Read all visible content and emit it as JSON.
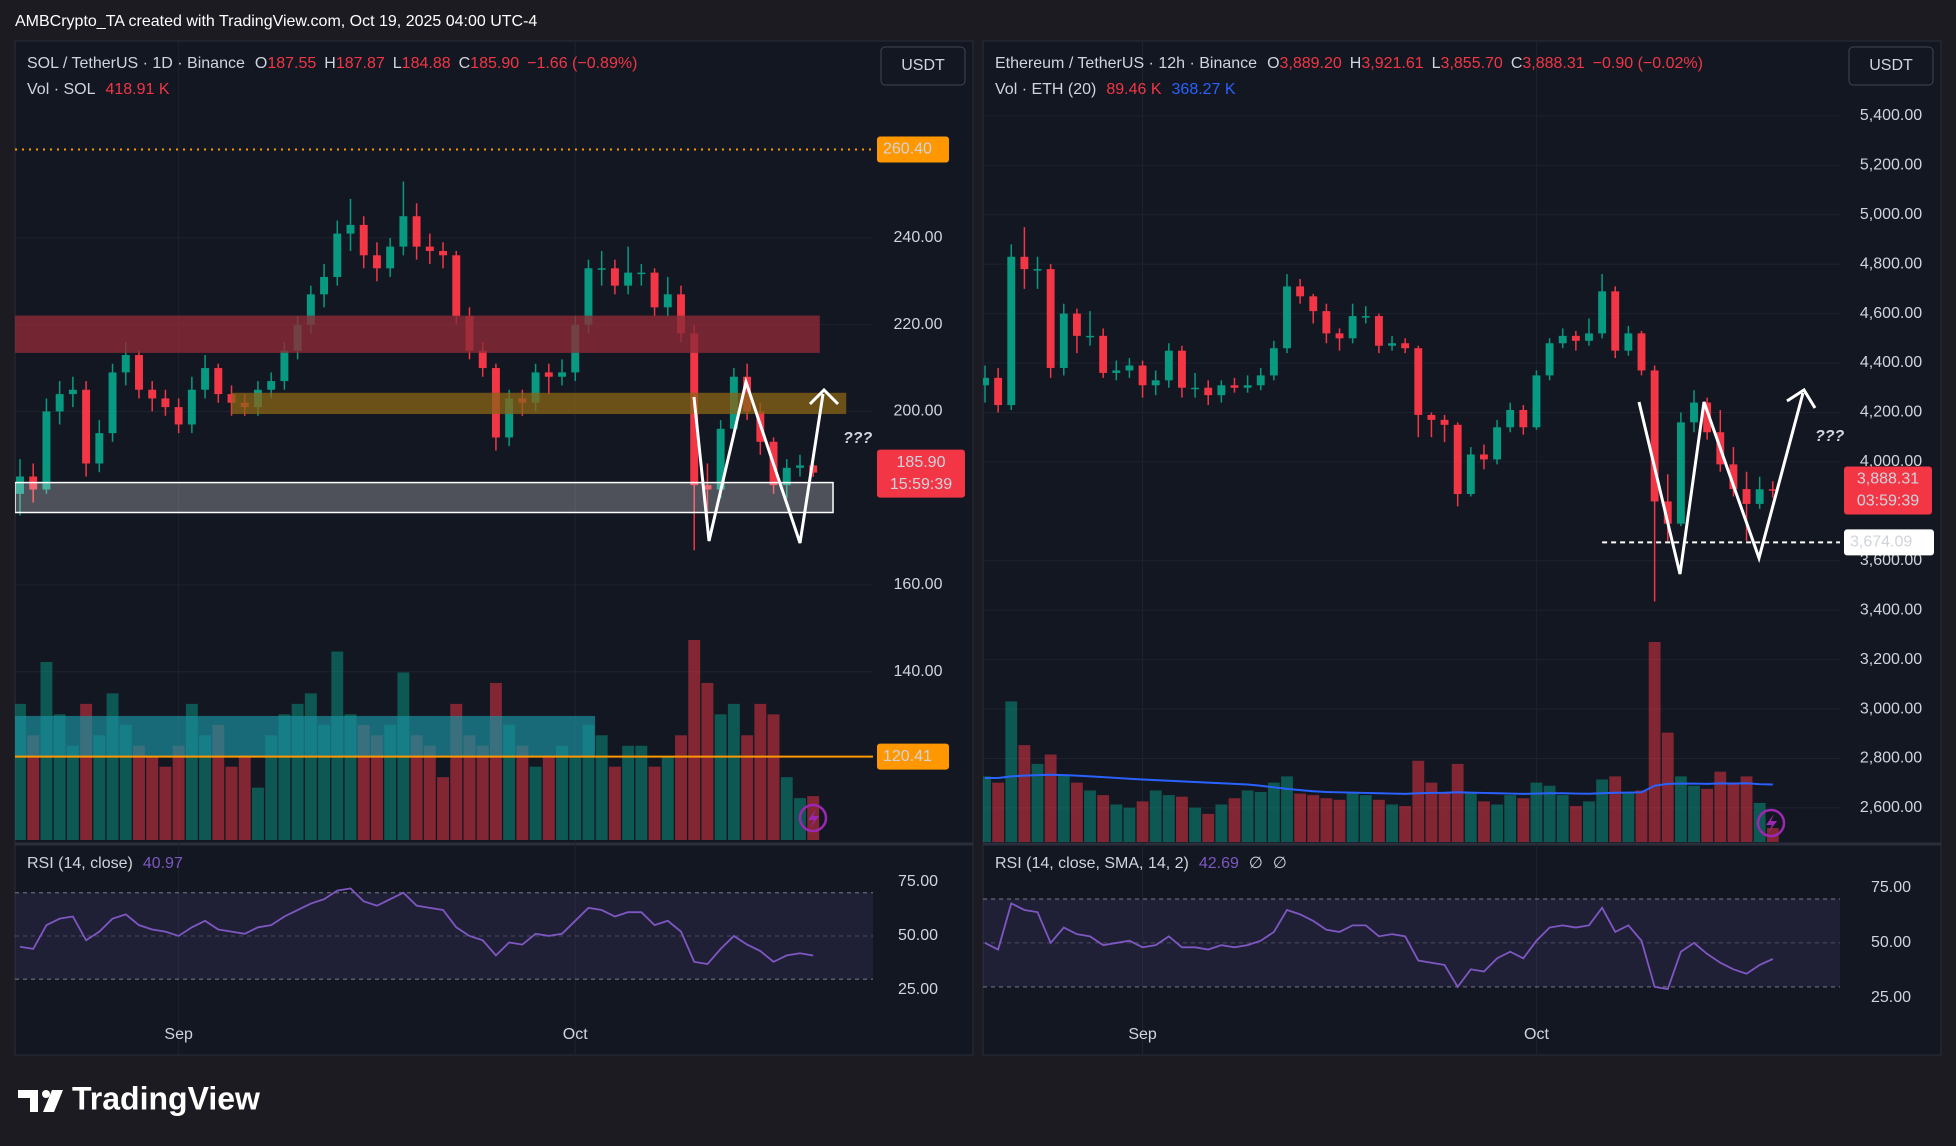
{
  "header": {
    "credit": "AMBCrypto_TA created with TradingView.com, Oct 19, 2025 04:00 UTC-4"
  },
  "footer": {
    "logo_text": "TradingView"
  },
  "chart_data": [
    {
      "type": "candlestick",
      "legend": {
        "symbol": "SOL / TetherUS · 1D · Binance",
        "fields": [
          {
            "key": "O",
            "value": "187.55"
          },
          {
            "key": "H",
            "value": "187.87"
          },
          {
            "key": "L",
            "value": "184.88"
          },
          {
            "key": "C",
            "value": "185.90"
          }
        ],
        "change": "−1.66 (−0.89%)"
      },
      "volume_legend": {
        "title": "Vol · SOL",
        "values": [
          "418.91 K"
        ]
      },
      "rsi_legend": {
        "title": "RSI (14, close)",
        "values": [
          "40.97"
        ]
      },
      "currency": "USDT",
      "up_color": "#089981",
      "down_color": "#f23645",
      "rsi_color": "#7e57c2",
      "ma_color": "#2962ff",
      "categories": [
        null,
        null,
        null,
        null,
        null,
        null,
        null,
        null,
        null,
        null,
        null,
        null,
        "Sep",
        null,
        null,
        null,
        null,
        null,
        null,
        null,
        null,
        null,
        null,
        null,
        null,
        null,
        null,
        null,
        null,
        null,
        null,
        null,
        null,
        null,
        null,
        null,
        null,
        null,
        null,
        null,
        null,
        null,
        "Oct",
        null,
        null,
        null,
        null,
        null,
        null,
        null,
        null,
        null,
        null,
        null,
        null,
        null,
        null,
        null,
        null,
        null,
        null
      ],
      "open": [
        181,
        185,
        182,
        200,
        204,
        205,
        188,
        195,
        209,
        213,
        205,
        203,
        201,
        197,
        205,
        210,
        204,
        202,
        201,
        205,
        207,
        214,
        220,
        227,
        231,
        241,
        243,
        236,
        233,
        238,
        245,
        238,
        237,
        236,
        222,
        214,
        210,
        194,
        203,
        202,
        209,
        208,
        209,
        220,
        233,
        233,
        229,
        232,
        232,
        224,
        227,
        218,
        183,
        182,
        196,
        208,
        200,
        193,
        183,
        187,
        187.55
      ],
      "high": [
        189,
        188,
        203,
        207,
        208,
        207,
        198,
        211,
        216,
        214,
        207,
        205,
        203,
        208,
        213,
        211,
        206,
        204,
        207,
        209,
        216,
        222,
        229,
        234,
        244,
        249,
        245,
        239,
        240,
        253,
        248,
        241,
        239,
        237,
        224,
        216,
        211,
        205,
        205,
        211,
        211,
        212,
        222,
        235,
        237,
        235,
        238,
        234,
        233,
        231,
        229,
        220,
        188,
        198,
        210,
        211,
        202,
        194,
        189,
        190,
        187.87
      ],
      "low": [
        176,
        179,
        181,
        197,
        201,
        185,
        186,
        193,
        206,
        203,
        200,
        199,
        195,
        195,
        203,
        202,
        199,
        199,
        199,
        203,
        205,
        212,
        218,
        224,
        229,
        237,
        233,
        230,
        231,
        236,
        235,
        234,
        233,
        220,
        212,
        208,
        191,
        192,
        199,
        200,
        204,
        206,
        207,
        218,
        229,
        227,
        227,
        229,
        222,
        222,
        216,
        168,
        175,
        180,
        194,
        198,
        190,
        181,
        180,
        185,
        184.88
      ],
      "close": [
        185,
        182,
        200,
        204,
        205,
        188,
        195,
        209,
        213,
        205,
        203,
        201,
        197,
        205,
        210,
        204,
        202,
        201,
        205,
        207,
        214,
        220,
        227,
        231,
        241,
        243,
        236,
        233,
        238,
        245,
        238,
        237,
        236,
        222,
        214,
        210,
        194,
        203,
        202,
        209,
        208,
        209,
        220,
        233,
        233,
        229,
        232,
        232,
        224,
        227,
        218,
        183,
        182,
        196,
        208,
        200,
        193,
        183,
        187,
        187.55,
        185.9
      ],
      "volume": [
        1300,
        1000,
        1700,
        1200,
        900,
        1300,
        1000,
        1400,
        1100,
        900,
        800,
        700,
        900,
        1300,
        1000,
        1100,
        700,
        800,
        500,
        1000,
        1200,
        1300,
        1400,
        1100,
        1800,
        1200,
        1100,
        1000,
        1100,
        1600,
        1000,
        900,
        600,
        1300,
        1000,
        900,
        1500,
        1100,
        900,
        700,
        800,
        900,
        800,
        1100,
        1000,
        700,
        900,
        900,
        700,
        800,
        1000,
        1910,
        1500,
        1200,
        1300,
        1000,
        1300,
        1200,
        600,
        400,
        418.91
      ],
      "rsi": [
        45,
        44,
        55,
        58,
        59,
        48,
        52,
        58,
        60,
        55,
        53,
        52,
        50,
        54,
        57,
        53,
        52,
        51,
        54,
        55,
        59,
        62,
        65,
        67,
        71,
        72,
        66,
        64,
        67,
        70,
        64,
        63,
        62,
        54,
        50,
        48,
        41,
        47,
        46,
        51,
        50,
        51,
        57,
        63,
        62,
        59,
        61,
        61,
        55,
        57,
        52,
        38,
        37,
        44,
        50,
        46,
        43,
        38,
        41,
        42,
        40.97
      ],
      "ylim": [
        101.2,
        285.4
      ],
      "yticks": [
        {
          "value": 140,
          "label": "140.00"
        },
        {
          "value": 160,
          "label": "160.00"
        },
        {
          "value": 200,
          "label": "200.00"
        },
        {
          "value": 220,
          "label": "220.00"
        },
        {
          "value": 240,
          "label": "240.00"
        }
      ],
      "rsi_ylim": [
        -5.1,
        90.7
      ],
      "rsi_yticks": [
        {
          "value": 25,
          "label": "25.00"
        },
        {
          "value": 50,
          "label": "50.00"
        },
        {
          "value": 75,
          "label": "75.00"
        }
      ],
      "rsi_bands": [
        70,
        50,
        30
      ],
      "grid": true,
      "zones": [
        {
          "low": 213.5,
          "high": 222.1,
          "from": 0,
          "to": 60,
          "color": "#8c2a37",
          "opacity": 0.8
        },
        {
          "low": 199.4,
          "high": 204.3,
          "from": 17,
          "to": 62,
          "color": "#8a6416",
          "opacity": 0.75
        },
        {
          "low": 176.7,
          "high": 183.6,
          "from": 0,
          "to": 61,
          "color": "#ffffff",
          "opacity": 0.25,
          "stroke": "#ffffff"
        },
        {
          "low": 120.3,
          "high": 129.8,
          "from": 0,
          "to": 43,
          "color": "#1b8f9c",
          "opacity": 0.7
        }
      ],
      "price_lines": [
        {
          "value": 260.4,
          "label": "260.40",
          "color": "#ff9800",
          "style": "dotted"
        },
        {
          "value": 120.41,
          "label": "120.41",
          "color": "#ff9800",
          "style": "solid"
        }
      ],
      "last_price": {
        "label": "185.90",
        "countdown": "15:59:39"
      },
      "annotation": "???"
    },
    {
      "type": "candlestick",
      "legend": {
        "symbol": "Ethereum / TetherUS · 12h · Binance",
        "fields": [
          {
            "key": "O",
            "value": "3,889.20"
          },
          {
            "key": "H",
            "value": "3,921.61"
          },
          {
            "key": "L",
            "value": "3,855.70"
          },
          {
            "key": "C",
            "value": "3,888.31"
          }
        ],
        "change": "−0.90 (−0.02%)"
      },
      "volume_legend": {
        "title": "Vol · ETH (20)",
        "values": [
          "89.46 K",
          "368.27 K"
        ]
      },
      "rsi_legend": {
        "title": "RSI (14, close, SMA, 14, 2)",
        "values": [
          "42.69",
          "∅",
          "∅"
        ]
      },
      "currency": "USDT",
      "up_color": "#089981",
      "down_color": "#f23645",
      "rsi_color": "#7e57c2",
      "ma_color": "#2962ff",
      "categories": [
        null,
        null,
        null,
        null,
        null,
        null,
        null,
        null,
        null,
        null,
        null,
        null,
        "Sep",
        null,
        null,
        null,
        null,
        null,
        null,
        null,
        null,
        null,
        null,
        null,
        null,
        null,
        null,
        null,
        null,
        null,
        null,
        null,
        null,
        null,
        null,
        null,
        null,
        null,
        null,
        null,
        null,
        null,
        "Oct",
        null,
        null,
        null,
        null,
        null,
        null,
        null,
        null,
        null,
        null,
        null,
        null,
        null,
        null,
        null,
        null,
        null,
        null
      ],
      "open": [
        4310,
        4340,
        4230,
        4830,
        4780,
        4780,
        4380,
        4600,
        4510,
        4510,
        4360,
        4370,
        4390,
        4310,
        4330,
        4450,
        4300,
        4300,
        4270,
        4310,
        4300,
        4310,
        4350,
        4460,
        4710,
        4670,
        4610,
        4520,
        4500,
        4590,
        4590,
        4470,
        4480,
        4460,
        4190,
        4170,
        4150,
        3870,
        4030,
        4010,
        4140,
        4210,
        4140,
        4350,
        4480,
        4510,
        4490,
        4520,
        4690,
        4450,
        4520,
        4370,
        3840,
        3750,
        4160,
        4240,
        4120,
        3990,
        3890,
        3830,
        3889.2
      ],
      "high": [
        4390,
        4380,
        4880,
        4950,
        4830,
        4800,
        4640,
        4620,
        4610,
        4540,
        4410,
        4420,
        4410,
        4370,
        4480,
        4470,
        4360,
        4330,
        4330,
        4340,
        4350,
        4380,
        4490,
        4760,
        4740,
        4680,
        4640,
        4540,
        4640,
        4630,
        4600,
        4510,
        4500,
        4470,
        4200,
        4190,
        4160,
        4060,
        4070,
        4170,
        4240,
        4230,
        4370,
        4500,
        4540,
        4530,
        4580,
        4760,
        4710,
        4550,
        4530,
        4390,
        3950,
        4200,
        4290,
        4260,
        4210,
        4060,
        3960,
        3940,
        3921.61
      ],
      "low": [
        4240,
        4200,
        4210,
        4700,
        4700,
        4340,
        4350,
        4440,
        4470,
        4340,
        4330,
        4340,
        4260,
        4270,
        4300,
        4260,
        4260,
        4230,
        4240,
        4280,
        4280,
        4290,
        4330,
        4440,
        4640,
        4560,
        4480,
        4450,
        4480,
        4560,
        4440,
        4450,
        4440,
        4100,
        4100,
        4080,
        3820,
        3860,
        3970,
        3990,
        4120,
        4110,
        4130,
        4330,
        4460,
        4450,
        4470,
        4500,
        4420,
        4430,
        4350,
        3435,
        3680,
        3740,
        4120,
        4090,
        3960,
        3860,
        3680,
        3810,
        3855.7
      ],
      "close": [
        4340,
        4230,
        4830,
        4780,
        4780,
        4380,
        4600,
        4510,
        4510,
        4360,
        4370,
        4390,
        4310,
        4330,
        4450,
        4300,
        4300,
        4270,
        4310,
        4300,
        4310,
        4350,
        4460,
        4710,
        4670,
        4610,
        4520,
        4500,
        4590,
        4590,
        4470,
        4480,
        4460,
        4190,
        4170,
        4150,
        3870,
        4030,
        4010,
        4140,
        4210,
        4140,
        4350,
        4480,
        4510,
        4490,
        4520,
        4690,
        4450,
        4520,
        4370,
        3840,
        3750,
        4160,
        4240,
        4120,
        3990,
        3890,
        3830,
        3889.2,
        3888.31
      ],
      "volume": [
        420,
        380,
        900,
        620,
        500,
        560,
        430,
        380,
        330,
        300,
        240,
        220,
        260,
        330,
        300,
        290,
        220,
        180,
        240,
        280,
        330,
        320,
        380,
        420,
        310,
        300,
        280,
        270,
        320,
        300,
        270,
        240,
        230,
        520,
        380,
        320,
        500,
        320,
        260,
        240,
        300,
        280,
        380,
        360,
        300,
        230,
        260,
        400,
        420,
        310,
        330,
        1280,
        700,
        420,
        360,
        340,
        450,
        380,
        420,
        250,
        89.46
      ],
      "volume_ma": [
        410,
        410,
        420,
        425,
        428,
        430,
        428,
        425,
        420,
        415,
        410,
        405,
        400,
        396,
        392,
        388,
        384,
        380,
        376,
        372,
        368,
        360,
        350,
        340,
        332,
        325,
        320,
        318,
        316,
        314,
        312,
        310,
        308,
        312,
        314,
        315,
        318,
        316,
        314,
        312,
        310,
        308,
        310,
        312,
        312,
        310,
        309,
        312,
        315,
        316,
        318,
        360,
        372,
        374,
        374,
        372,
        375,
        374,
        376,
        370,
        368.27
      ],
      "rsi": [
        50,
        47,
        68,
        65,
        64,
        50,
        57,
        54,
        53,
        49,
        50,
        51,
        48,
        49,
        53,
        48,
        48,
        47,
        49,
        48,
        49,
        51,
        55,
        65,
        63,
        60,
        56,
        55,
        58,
        58,
        53,
        54,
        53,
        42,
        41,
        40,
        30,
        38,
        37,
        43,
        46,
        43,
        51,
        57,
        58,
        57,
        58,
        66,
        55,
        58,
        51,
        30,
        29,
        46,
        50,
        45,
        41,
        38,
        36,
        40,
        42.69
      ],
      "ylim": [
        2462,
        5703
      ],
      "yticks": [
        {
          "value": 2600,
          "label": "2,600.00"
        },
        {
          "value": 2800,
          "label": "2,800.00"
        },
        {
          "value": 3000,
          "label": "3,000.00"
        },
        {
          "value": 3200,
          "label": "3,200.00"
        },
        {
          "value": 3400,
          "label": "3,400.00"
        },
        {
          "value": 3600,
          "label": "3,600.00"
        },
        {
          "value": 4000,
          "label": "4,000.00"
        },
        {
          "value": 4200,
          "label": "4,200.00"
        },
        {
          "value": 4400,
          "label": "4,400.00"
        },
        {
          "value": 4600,
          "label": "4,600.00"
        },
        {
          "value": 4800,
          "label": "4,800.00"
        },
        {
          "value": 5000,
          "label": "5,000.00"
        },
        {
          "value": 5200,
          "label": "5,200.00"
        },
        {
          "value": 5400,
          "label": "5,400.00"
        }
      ],
      "rsi_ylim": [
        -1,
        93.2
      ],
      "rsi_yticks": [
        {
          "value": 25,
          "label": "25.00"
        },
        {
          "value": 50,
          "label": "50.00"
        },
        {
          "value": 75,
          "label": "75.00"
        }
      ],
      "rsi_bands": [
        70,
        50,
        30
      ],
      "grid": true,
      "zones": [],
      "price_lines": [
        {
          "value": 3674.09,
          "label": "3,674.09",
          "color": "#ffffff",
          "style": "dashed",
          "from": 47
        }
      ],
      "last_price": {
        "label": "3,888.31",
        "countdown": "03:59:39"
      },
      "annotation": "???"
    }
  ]
}
